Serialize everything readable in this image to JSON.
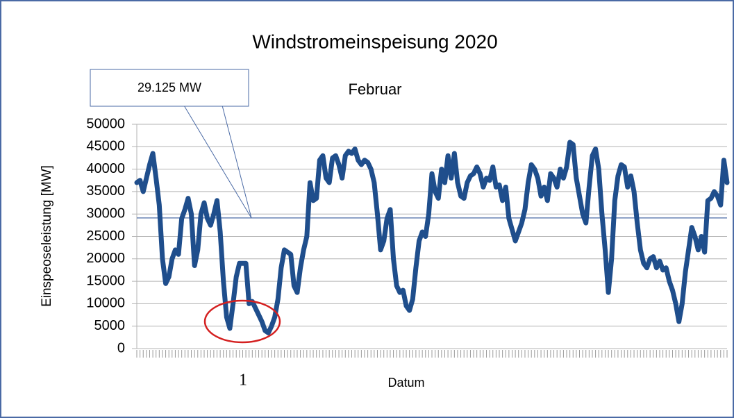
{
  "chart_data": {
    "type": "line",
    "title": "Windstromeinspeisung 2020",
    "subtitle": "Februar",
    "x_label": "Datum",
    "y_label": "Einspeoseleistung [MW]",
    "annotation": "1",
    "reference_line": {
      "value": 29125,
      "label": "29.125 MW"
    },
    "color": "#1f4e8c",
    "grid": true,
    "ylim": [
      0,
      50000
    ],
    "yticks": [
      0,
      5000,
      10000,
      15000,
      20000,
      25000,
      30000,
      35000,
      40000,
      45000,
      50000
    ],
    "categories": [
      null,
      null,
      null,
      null,
      null,
      null,
      null,
      null,
      null,
      null,
      null,
      null,
      null,
      null,
      null,
      null,
      null,
      null,
      null,
      null,
      null,
      null,
      null,
      null,
      null,
      null,
      null,
      null,
      null,
      null,
      null,
      null,
      null,
      null,
      null,
      null,
      null,
      null,
      null,
      null,
      null,
      null,
      null,
      null,
      null,
      null,
      null,
      null,
      null,
      null,
      null,
      null,
      null,
      null,
      null,
      null,
      null,
      null,
      null,
      null,
      null,
      null,
      null,
      null,
      null,
      null,
      null,
      null,
      null,
      null,
      null,
      null,
      null,
      null,
      null,
      null,
      null,
      null,
      null,
      null,
      null,
      null,
      null,
      null,
      null,
      null,
      null,
      null,
      null,
      null,
      null,
      null,
      null,
      null,
      null,
      null,
      null,
      null,
      null,
      null,
      null,
      null,
      null,
      null,
      null,
      null,
      null,
      null,
      null,
      null,
      null,
      null,
      null,
      null,
      null,
      null,
      null,
      null,
      null,
      null,
      null,
      null,
      null,
      null,
      null,
      null,
      null,
      null,
      null,
      null,
      null,
      null,
      null,
      null,
      null,
      null,
      null,
      null,
      null,
      null,
      null,
      null,
      null,
      null,
      null,
      null,
      null,
      null,
      null,
      null,
      null,
      null,
      null,
      null,
      null,
      null,
      null,
      null,
      null,
      null,
      null,
      null,
      null,
      null,
      null,
      null,
      null,
      null,
      null,
      null,
      null,
      null,
      null,
      null,
      null,
      null,
      null,
      null,
      null,
      null,
      null,
      null,
      null,
      null,
      null
    ],
    "values": [
      37000,
      37500,
      35000,
      38000,
      41000,
      43500,
      38000,
      32000,
      20000,
      14500,
      16000,
      20000,
      22000,
      21000,
      29000,
      31000,
      33500,
      30000,
      18500,
      22000,
      30000,
      32500,
      29000,
      27500,
      30000,
      33000,
      26000,
      15000,
      7000,
      4500,
      10000,
      16000,
      19000,
      19000,
      19000,
      10000,
      10500,
      9000,
      7500,
      6000,
      4000,
      3500,
      5000,
      7000,
      11000,
      18000,
      22000,
      21500,
      21000,
      14000,
      12500,
      18000,
      22000,
      25000,
      37000,
      33000,
      33500,
      42000,
      43000,
      38000,
      37000,
      42500,
      43000,
      41000,
      38000,
      43000,
      44000,
      43500,
      44500,
      42000,
      41000,
      42000,
      41500,
      40000,
      37000,
      30000,
      22000,
      24000,
      29000,
      31000,
      20000,
      14000,
      12500,
      13000,
      9500,
      8500,
      11000,
      18000,
      24000,
      26000,
      25000,
      30000,
      39000,
      35000,
      33500,
      40000,
      37000,
      43000,
      38000,
      43500,
      37000,
      34000,
      33500,
      37000,
      38500,
      39000,
      40500,
      39000,
      36000,
      38000,
      37500,
      40500,
      36000,
      36500,
      33000,
      36000,
      29000,
      26500,
      24000,
      26000,
      28000,
      31000,
      37000,
      41000,
      40000,
      38000,
      34000,
      36000,
      33000,
      39000,
      38000,
      36000,
      40000,
      38000,
      40500,
      46000,
      45500,
      38000,
      34000,
      30000,
      28000,
      36000,
      43000,
      44500,
      40000,
      30000,
      22000,
      12500,
      20000,
      33000,
      38500,
      41000,
      40500,
      36000,
      38500,
      35000,
      28000,
      22000,
      19000,
      18000,
      20000,
      20500,
      18000,
      19500,
      17500,
      18000,
      15000,
      13000,
      10000,
      6000,
      10000,
      17000,
      22000,
      27000,
      25000,
      22000,
      25000,
      21500,
      33000,
      33500,
      35000,
      34000,
      32000,
      42000,
      37000
    ]
  }
}
